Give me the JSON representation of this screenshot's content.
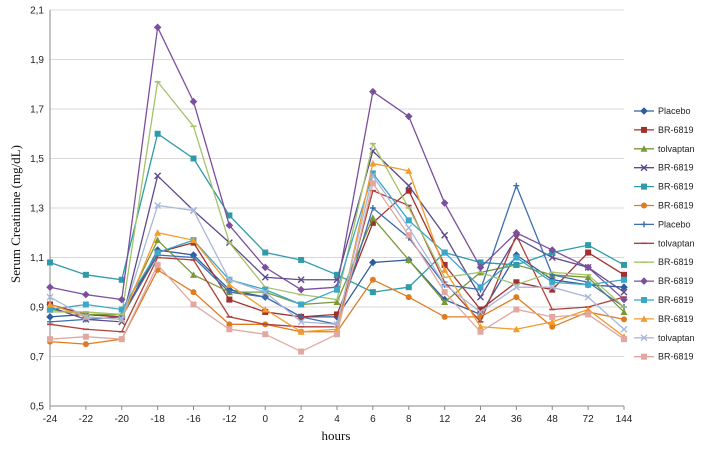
{
  "chart_data": {
    "type": "line",
    "xlabel": "hours",
    "ylabel": "Serum Creatinine  (mg/dL)",
    "ylim": [
      0.5,
      2.1
    ],
    "yticks": [
      "0,5",
      "0,7",
      "0,9",
      "1,1",
      "1,3",
      "1,5",
      "1,7",
      "1,9",
      "2,1"
    ],
    "grid": "horizontal",
    "legend": "right",
    "categories": [
      "-24",
      "-22",
      "-20",
      "-18",
      "-16",
      "-12",
      "0",
      "2",
      "4",
      "6",
      "8",
      "12",
      "24",
      "36",
      "48",
      "72",
      "144"
    ],
    "series": [
      {
        "name": "Placebo",
        "color": "#2E5D9E",
        "marker": "diamond",
        "values": [
          0.86,
          0.87,
          0.86,
          1.13,
          1.11,
          0.97,
          0.94,
          0.86,
          0.86,
          1.08,
          1.09,
          0.93,
          0.87,
          1.11,
          1.01,
          0.99,
          0.98
        ]
      },
      {
        "name": "BR-6819",
        "color": "#A0312E",
        "marker": "square",
        "values": [
          0.91,
          0.87,
          0.86,
          1.12,
          1.16,
          0.93,
          0.88,
          0.86,
          0.87,
          1.24,
          1.37,
          1.07,
          0.89,
          1.0,
          0.97,
          1.12,
          1.03
        ]
      },
      {
        "name": "tolvaptan",
        "color": "#7A9A3A",
        "marker": "triangle",
        "values": [
          0.89,
          0.87,
          0.87,
          1.17,
          1.03,
          0.96,
          0.96,
          0.91,
          0.92,
          1.26,
          1.09,
          0.92,
          1.04,
          1.07,
          1.03,
          1.02,
          0.88
        ]
      },
      {
        "name": "BR-6819",
        "color": "#5E4A8A",
        "marker": "x",
        "values": [
          0.9,
          0.85,
          0.84,
          1.43,
          1.29,
          1.16,
          1.02,
          1.01,
          1.01,
          1.53,
          1.39,
          1.19,
          0.94,
          1.18,
          1.1,
          1.06,
          0.96
        ]
      },
      {
        "name": "BR-6819",
        "color": "#2F9BAA",
        "marker": "square",
        "values": [
          1.08,
          1.03,
          1.01,
          1.6,
          1.5,
          1.27,
          1.12,
          1.09,
          1.03,
          0.96,
          0.98,
          1.12,
          1.08,
          1.07,
          1.12,
          1.15,
          1.07
        ]
      },
      {
        "name": "BR-6819",
        "color": "#E07B20",
        "marker": "circle",
        "values": [
          0.76,
          0.75,
          0.77,
          1.05,
          0.96,
          0.83,
          0.83,
          0.8,
          0.8,
          1.01,
          0.94,
          0.86,
          0.86,
          0.94,
          0.82,
          0.88,
          0.85
        ]
      },
      {
        "name": "Placebo",
        "color": "#3E6FB0",
        "marker": "plus",
        "values": [
          0.84,
          0.85,
          0.86,
          1.11,
          1.1,
          0.96,
          0.94,
          0.86,
          0.83,
          1.3,
          1.18,
          0.99,
          0.97,
          1.39,
          1.03,
          1.0,
          0.9
        ]
      },
      {
        "name": "tolvaptan",
        "color": "#B0403A",
        "marker": "dash",
        "values": [
          0.83,
          0.81,
          0.8,
          1.1,
          1.09,
          0.86,
          0.83,
          0.82,
          0.82,
          1.37,
          1.31,
          1.0,
          0.84,
          1.19,
          0.89,
          0.9,
          0.94
        ]
      },
      {
        "name": "BR-6819",
        "color": "#A6C26A",
        "marker": "dash",
        "values": [
          0.88,
          0.88,
          0.87,
          1.81,
          1.63,
          1.16,
          0.98,
          0.95,
          0.93,
          1.56,
          1.3,
          1.02,
          1.04,
          0.99,
          1.04,
          1.03,
          0.9
        ]
      },
      {
        "name": "BR-6819",
        "color": "#7B4F9E",
        "marker": "diamond",
        "values": [
          0.98,
          0.95,
          0.93,
          2.03,
          1.73,
          1.23,
          1.06,
          0.97,
          0.98,
          1.77,
          1.67,
          1.32,
          1.06,
          1.2,
          1.13,
          1.06,
          0.93
        ]
      },
      {
        "name": "BR-6819",
        "color": "#3BA7C9",
        "marker": "square",
        "values": [
          0.89,
          0.91,
          0.89,
          1.12,
          1.17,
          1.01,
          0.97,
          0.91,
          0.97,
          1.44,
          1.25,
          1.12,
          0.98,
          1.1,
          1.0,
          0.99,
          1.01
        ]
      },
      {
        "name": "BR-6819",
        "color": "#F39C2C",
        "marker": "triangle",
        "values": [
          0.91,
          0.86,
          0.85,
          1.2,
          1.17,
          0.99,
          0.89,
          0.8,
          0.81,
          1.48,
          1.45,
          1.05,
          0.82,
          0.81,
          0.84,
          0.89,
          0.78
        ]
      },
      {
        "name": "tolvaptan",
        "color": "#A9B8D8",
        "marker": "x",
        "values": [
          0.94,
          0.86,
          0.85,
          1.31,
          1.29,
          1.01,
          0.96,
          0.84,
          0.83,
          1.43,
          1.22,
          0.99,
          0.88,
          0.98,
          0.98,
          0.94,
          0.81
        ]
      },
      {
        "name": "BR-6819",
        "color": "#E0A8A0",
        "marker": "square",
        "values": [
          0.77,
          0.78,
          0.77,
          1.07,
          0.91,
          0.81,
          0.79,
          0.72,
          0.79,
          1.4,
          1.19,
          0.96,
          0.8,
          0.89,
          0.86,
          0.87,
          0.77
        ]
      }
    ]
  }
}
